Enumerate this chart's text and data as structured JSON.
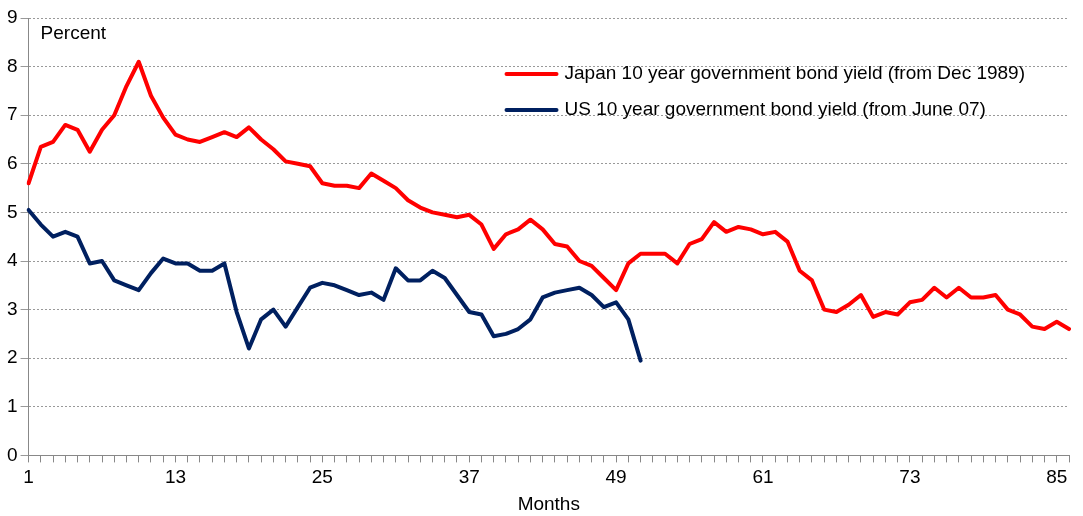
{
  "chart_data": {
    "type": "line",
    "ylabel": "Percent",
    "xlabel": "Months",
    "categories": [
      "1",
      null,
      null,
      null,
      null,
      null,
      null,
      null,
      null,
      null,
      null,
      null,
      "13",
      null,
      null,
      null,
      null,
      null,
      null,
      null,
      null,
      null,
      null,
      null,
      "25",
      null,
      null,
      null,
      null,
      null,
      null,
      null,
      null,
      null,
      null,
      null,
      "37",
      null,
      null,
      null,
      null,
      null,
      null,
      null,
      null,
      null,
      null,
      null,
      "49",
      null,
      null,
      null,
      null,
      null,
      null,
      null,
      null,
      null,
      null,
      null,
      "61",
      null,
      null,
      null,
      null,
      null,
      null,
      null,
      null,
      null,
      null,
      null,
      "73",
      null,
      null,
      null,
      null,
      null,
      null,
      null,
      null,
      null,
      null,
      null,
      "85",
      null
    ],
    "series": [
      {
        "name": "Japan 10 year government bond yield (from Dec 1989)",
        "color": "#ff0000",
        "values": [
          5.6,
          6.35,
          6.45,
          6.8,
          6.7,
          6.25,
          6.7,
          7.0,
          7.6,
          8.1,
          7.4,
          6.95,
          6.6,
          6.5,
          6.45,
          6.55,
          6.65,
          6.55,
          6.75,
          6.5,
          6.3,
          6.05,
          6.0,
          5.95,
          5.6,
          5.55,
          5.55,
          5.5,
          5.8,
          5.65,
          5.5,
          5.25,
          5.1,
          5.0,
          4.95,
          4.9,
          4.95,
          4.75,
          4.25,
          4.55,
          4.65,
          4.85,
          4.65,
          4.35,
          4.3,
          4.0,
          3.9,
          3.65,
          3.4,
          3.95,
          4.15,
          4.15,
          4.15,
          3.95,
          4.35,
          4.45,
          4.8,
          4.6,
          4.7,
          4.65,
          4.55,
          4.6,
          4.4,
          3.8,
          3.6,
          3.0,
          2.95,
          3.1,
          3.3,
          2.85,
          2.95,
          2.9,
          3.15,
          3.2,
          3.45,
          3.25,
          3.45,
          3.25,
          3.25,
          3.3,
          3.0,
          2.9,
          2.65,
          2.6,
          2.75,
          2.6
        ]
      },
      {
        "name": "US 10 year government bond yield (from June 07)",
        "color": "#002060",
        "values": [
          5.05,
          4.75,
          4.5,
          4.6,
          4.5,
          3.95,
          4.0,
          3.6,
          3.5,
          3.4,
          3.75,
          4.05,
          3.95,
          3.95,
          3.8,
          3.8,
          3.95,
          2.95,
          2.2,
          2.8,
          3.0,
          2.65,
          3.05,
          3.45,
          3.55,
          3.5,
          3.4,
          3.3,
          3.35,
          3.2,
          3.85,
          3.6,
          3.6,
          3.8,
          3.65,
          3.3,
          2.95,
          2.9,
          2.45,
          2.5,
          2.6,
          2.8,
          3.25,
          3.35,
          3.4,
          3.45,
          3.3,
          3.05,
          3.15,
          2.8,
          1.95,
          null,
          null,
          null,
          null,
          null,
          null,
          null,
          null,
          null,
          null,
          null,
          null,
          null,
          null,
          null,
          null,
          null,
          null,
          null,
          null,
          null,
          null,
          null,
          null,
          null,
          null,
          null,
          null,
          null,
          null,
          null,
          null,
          null,
          null,
          null
        ]
      }
    ],
    "ylim": [
      0,
      9
    ],
    "yticks": [
      0,
      1,
      2,
      3,
      4,
      5,
      6,
      7,
      8,
      9
    ],
    "grid": "y",
    "legend": "top right",
    "marker": "none",
    "line_style": "solid"
  }
}
